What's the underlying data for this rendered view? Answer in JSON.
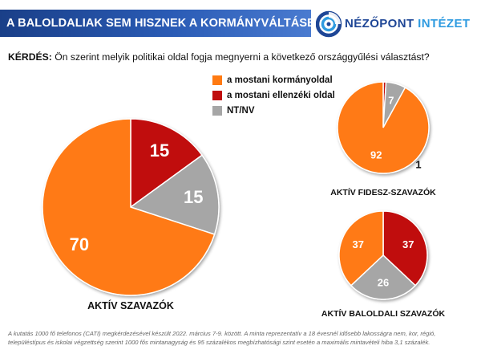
{
  "header": {
    "title": "A BALOLDALIAK SEM HISZNEK A KORMÁNYVÁLTÁSBAN",
    "logo_word1": "NÉZŐPONT",
    "logo_word2": "INTÉZET",
    "logo_icon": "nezopont-logo-icon"
  },
  "question": {
    "label": "KÉRDÉS:",
    "text": "Ön szerint melyik politikai oldal fogja megnyerni a következő országgyűlési választást?"
  },
  "colors": {
    "government": "#ff7a12",
    "opposition": "#c00d0d",
    "nt_nv": "#a6a6a6",
    "banner": "#1f4a9a"
  },
  "legend": [
    {
      "label": "a mostani kormányoldal",
      "color": "#ff7a12"
    },
    {
      "label": "a mostani ellenzéki oldal",
      "color": "#c00d0d"
    },
    {
      "label": "NT/NV",
      "color": "#a6a6a6"
    }
  ],
  "chart_data": [
    {
      "type": "pie",
      "title": "AKTÍV SZAVAZÓK",
      "labels": [
        "a mostani kormányoldal",
        "a mostani ellenzéki oldal",
        "NT/NV"
      ],
      "values": [
        70,
        15,
        15
      ],
      "value_labels": [
        "70",
        "15",
        "15"
      ],
      "colors": [
        "#ff7a12",
        "#c00d0d",
        "#a6a6a6"
      ]
    },
    {
      "type": "pie",
      "title": "AKTÍV FIDESZ-SZAVAZÓK",
      "labels": [
        "a mostani kormányoldal",
        "a mostani ellenzéki oldal",
        "NT/NV"
      ],
      "values": [
        92,
        1,
        7
      ],
      "value_labels": [
        "92",
        "1",
        "7"
      ],
      "colors": [
        "#ff7a12",
        "#c00d0d",
        "#a6a6a6"
      ]
    },
    {
      "type": "pie",
      "title": "AKTÍV BALOLDALI SZAVAZÓK",
      "labels": [
        "a mostani kormányoldal",
        "a mostani ellenzéki oldal",
        "NT/NV"
      ],
      "values": [
        37,
        37,
        26
      ],
      "value_labels": [
        "37",
        "37",
        "26"
      ],
      "colors": [
        "#ff7a12",
        "#c00d0d",
        "#a6a6a6"
      ]
    }
  ],
  "footnote": "A kutatás 1000 fő telefonos (CATI) megkérdezésével készült 2022. március 7-9. között. A minta reprezentatív a 18 évesnél idősebb lakosságra nem, kor, régió, településtípus és iskolai végzettség szerint 1000 fős mintanagyság és 95 százalékos megbízhatósági szint esetén a maximális mintavételi hiba 3,1 százalék."
}
